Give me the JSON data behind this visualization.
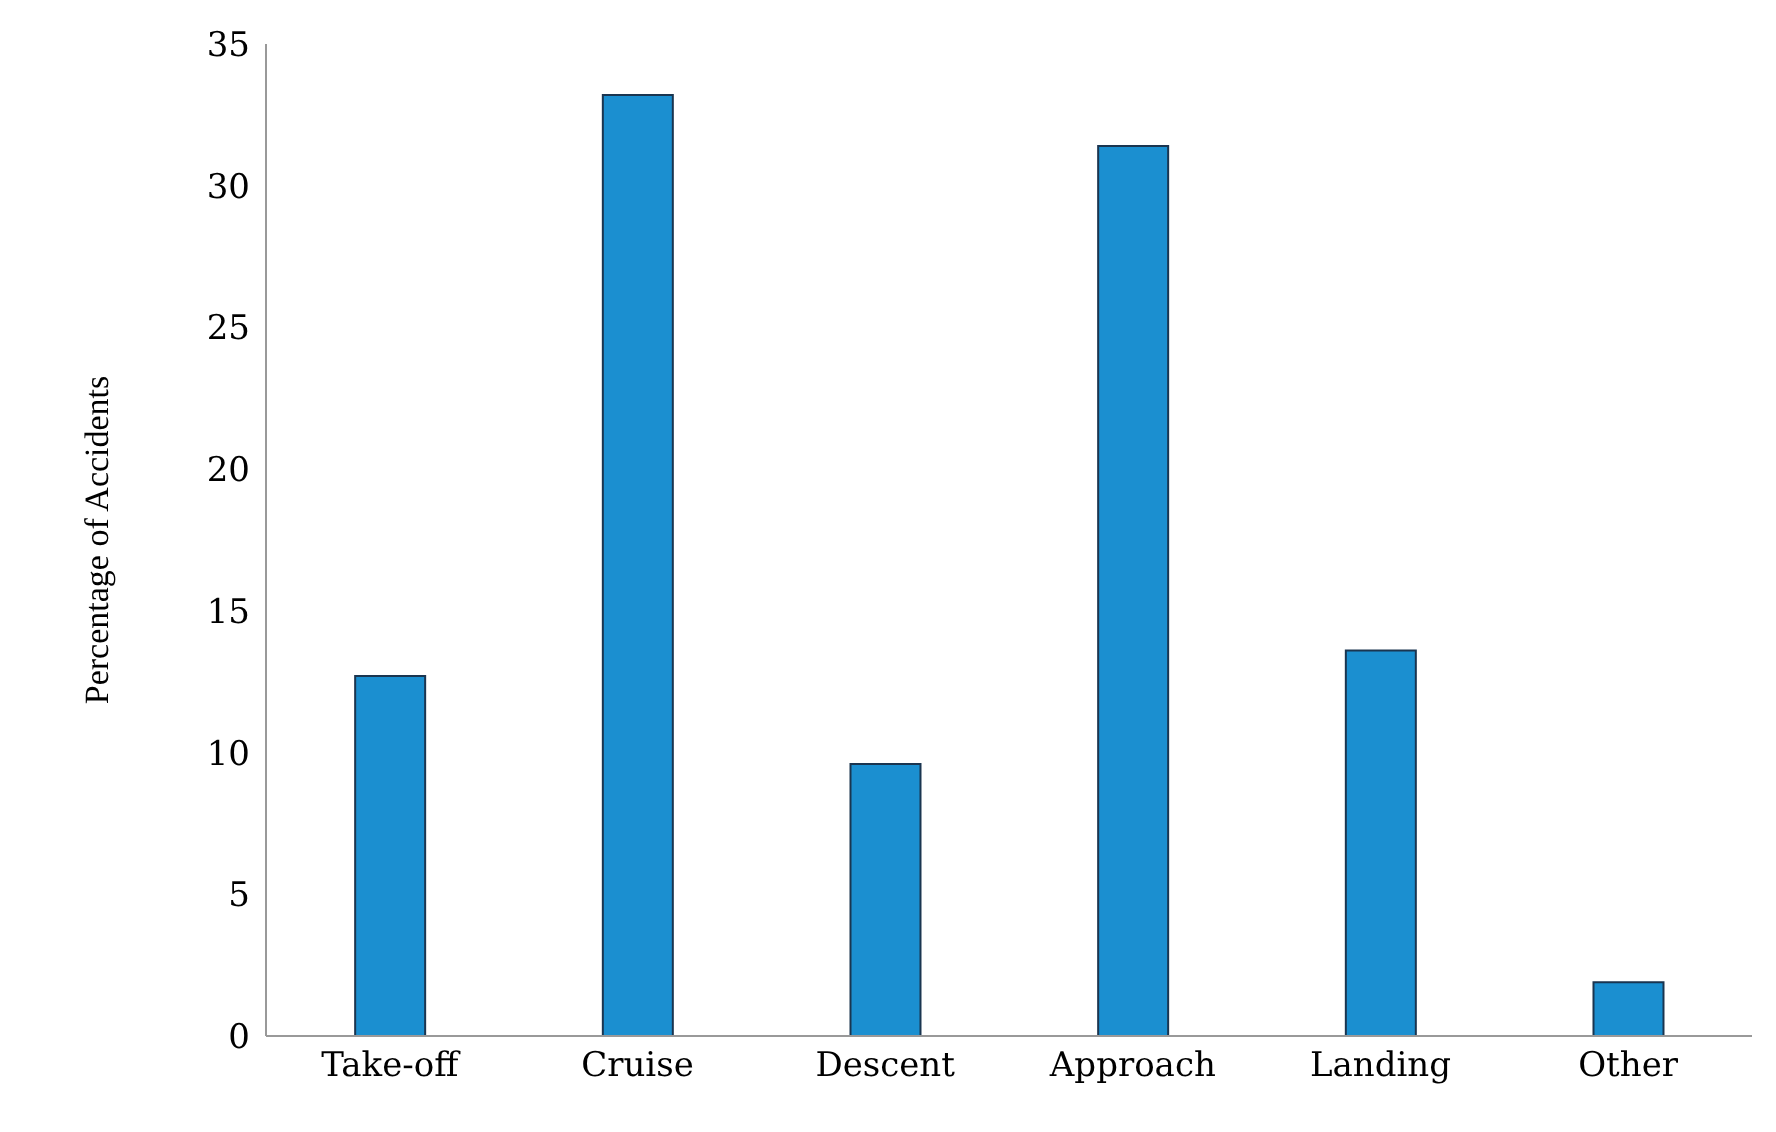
{
  "chart_data": {
    "type": "bar",
    "ylabel": "Percentage of Accidents",
    "categories": [
      "Take-off",
      "Cruise",
      "Descent",
      "Approach",
      "Landing",
      "Other"
    ],
    "values": [
      12.7,
      33.2,
      9.6,
      31.4,
      13.6,
      1.9
    ],
    "color": "#1b8fd0",
    "ylim": [
      0,
      35
    ],
    "yticks": [
      0,
      5,
      10,
      15,
      20,
      25,
      30,
      35
    ],
    "grid": false,
    "legend": false
  }
}
